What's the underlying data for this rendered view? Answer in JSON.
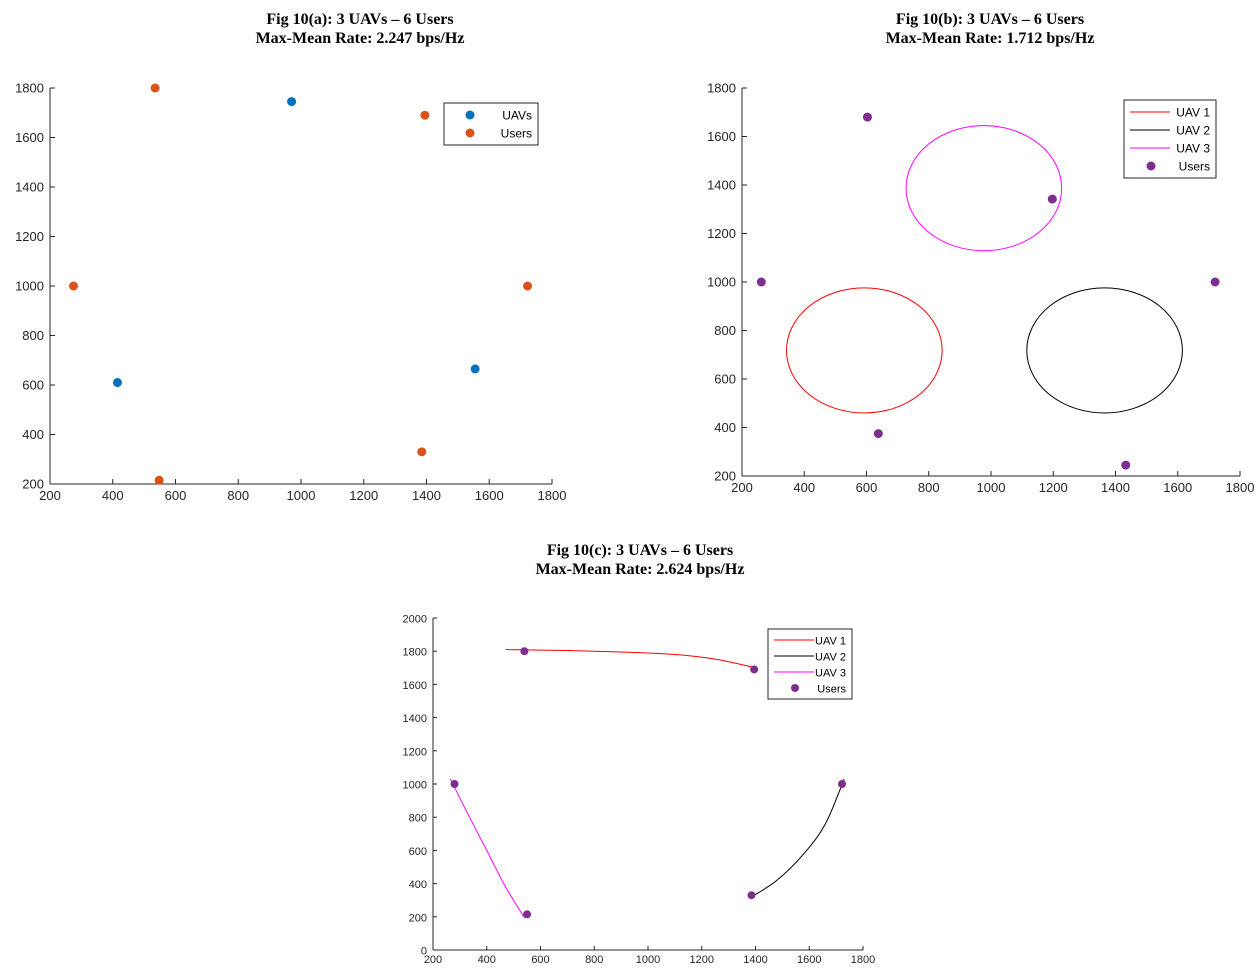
{
  "chart_data": [
    {
      "id": "a",
      "type": "scatter",
      "title": "Fig 10(a): 3 UAVs – 6 Users",
      "subtitle": "Max-Mean Rate: 2.247 bps/Hz",
      "xlim": [
        200,
        1800
      ],
      "ylim": [
        200,
        1800
      ],
      "xticks": [
        200,
        400,
        600,
        800,
        1000,
        1200,
        1400,
        1600,
        1800
      ],
      "yticks": [
        200,
        400,
        600,
        800,
        1000,
        1200,
        1400,
        1600,
        1800
      ],
      "legend_position": "top-right",
      "series": [
        {
          "name": "UAVs",
          "kind": "points",
          "color": "#0072BD",
          "points": [
            [
              415,
              610
            ],
            [
              970,
              1745
            ],
            [
              1555,
              665
            ]
          ]
        },
        {
          "name": "Users",
          "kind": "points",
          "color": "#D95319",
          "points": [
            [
              275,
              1000
            ],
            [
              535,
              1800
            ],
            [
              548,
              215
            ],
            [
              1395,
              1690
            ],
            [
              1385,
              330
            ],
            [
              1722,
              1000
            ]
          ]
        }
      ]
    },
    {
      "id": "b",
      "type": "line",
      "title": "Fig 10(b): 3 UAVs – 6 Users",
      "subtitle": "Max-Mean Rate: 1.712 bps/Hz",
      "xlim": [
        200,
        1800
      ],
      "ylim": [
        200,
        1800
      ],
      "xticks": [
        200,
        400,
        600,
        800,
        1000,
        1200,
        1400,
        1600,
        1800
      ],
      "yticks": [
        200,
        400,
        600,
        800,
        1000,
        1200,
        1400,
        1600,
        1800
      ],
      "legend_position": "top-right",
      "series": [
        {
          "name": "UAV 1",
          "kind": "ellipse",
          "color": "#FF0000",
          "center": [
            593,
            718
          ],
          "radii": [
            250,
            258
          ]
        },
        {
          "name": "UAV 2",
          "kind": "ellipse",
          "color": "#000000",
          "center": [
            1365,
            718
          ],
          "radii": [
            250,
            258
          ]
        },
        {
          "name": "UAV 3",
          "kind": "ellipse",
          "color": "#FF00FF",
          "center": [
            977,
            1387
          ],
          "radii": [
            250,
            258
          ]
        },
        {
          "name": "Users",
          "kind": "points",
          "color": "#7E2F8E",
          "points": [
            [
              262,
              1000
            ],
            [
              603,
              1680
            ],
            [
              638,
              375
            ],
            [
              1197,
              1342
            ],
            [
              1433,
              245
            ],
            [
              1720,
              1000
            ]
          ]
        }
      ]
    },
    {
      "id": "c",
      "type": "line",
      "title": "Fig 10(c): 3 UAVs – 6 Users",
      "subtitle": "Max-Mean Rate: 2.624 bps/Hz",
      "xlim": [
        200,
        1800
      ],
      "ylim": [
        0,
        2000
      ],
      "xticks": [
        200,
        400,
        600,
        800,
        1000,
        1200,
        1400,
        1600,
        1800
      ],
      "yticks": [
        0,
        200,
        400,
        600,
        800,
        1000,
        1200,
        1400,
        1600,
        1800,
        2000
      ],
      "legend_position": "top-right",
      "series": [
        {
          "name": "UAV 1",
          "kind": "path",
          "color": "#FF0000",
          "points": [
            [
              470,
              1810
            ],
            [
              700,
              1804
            ],
            [
              900,
              1795
            ],
            [
              1100,
              1780
            ],
            [
              1250,
              1752
            ],
            [
              1400,
              1700
            ]
          ]
        },
        {
          "name": "UAV 2",
          "kind": "path",
          "color": "#000000",
          "points": [
            [
              1380,
              315
            ],
            [
              1480,
              420
            ],
            [
              1580,
              580
            ],
            [
              1660,
              760
            ],
            [
              1730,
              1030
            ]
          ]
        },
        {
          "name": "UAV 3",
          "kind": "path",
          "color": "#FF00FF",
          "points": [
            [
              265,
              1030
            ],
            [
              320,
              850
            ],
            [
              400,
              600
            ],
            [
              470,
              380
            ],
            [
              540,
              195
            ]
          ]
        },
        {
          "name": "Users",
          "kind": "points",
          "color": "#7E2F8E",
          "points": [
            [
              280,
              1000
            ],
            [
              540,
              1800
            ],
            [
              550,
              215
            ],
            [
              1395,
              1690
            ],
            [
              1385,
              330
            ],
            [
              1722,
              1000
            ]
          ]
        }
      ]
    }
  ]
}
